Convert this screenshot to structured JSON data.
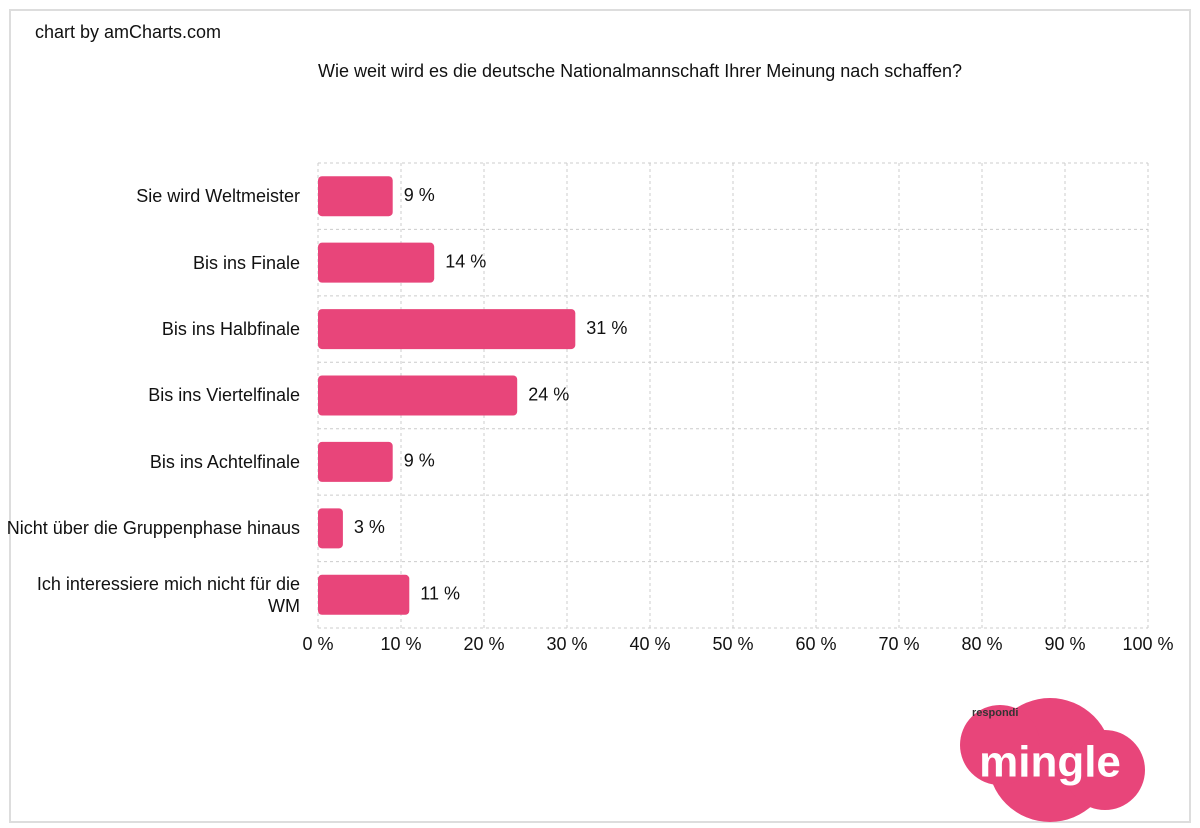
{
  "chart_data": {
    "type": "bar",
    "orientation": "horizontal",
    "credit": "chart by amCharts.com",
    "title": "Wie weit wird es die deutsche Nationalmannschaft Ihrer Meinung nach schaffen?",
    "categories": [
      "Sie wird Weltmeister",
      "Bis ins Finale",
      "Bis ins Halbfinale",
      "Bis ins Viertelfinale",
      "Bis ins Achtelfinale",
      "Nicht über die Gruppenphase hinaus",
      "Ich interessiere mich nicht für die WM"
    ],
    "values": [
      9,
      14,
      31,
      24,
      9,
      3,
      11
    ],
    "value_labels": [
      "9 %",
      "14 %",
      "31 %",
      "24 %",
      "9 %",
      "3 %",
      "11 %"
    ],
    "color": "#e8457a",
    "xlim": [
      0,
      100
    ],
    "xticks": [
      {
        "value": 0,
        "label": "0 %"
      },
      {
        "value": 10,
        "label": "10 %"
      },
      {
        "value": 20,
        "label": "20 %"
      },
      {
        "value": 30,
        "label": "30 %"
      },
      {
        "value": 40,
        "label": "40 %"
      },
      {
        "value": 50,
        "label": "50 %"
      },
      {
        "value": 60,
        "label": "60 %"
      },
      {
        "value": 70,
        "label": "70 %"
      },
      {
        "value": 80,
        "label": "80 %"
      },
      {
        "value": 90,
        "label": "90 %"
      },
      {
        "value": 100,
        "label": "100 %"
      }
    ],
    "grid": true,
    "logo_tagline": "respondi",
    "logo_text": "mingle"
  }
}
